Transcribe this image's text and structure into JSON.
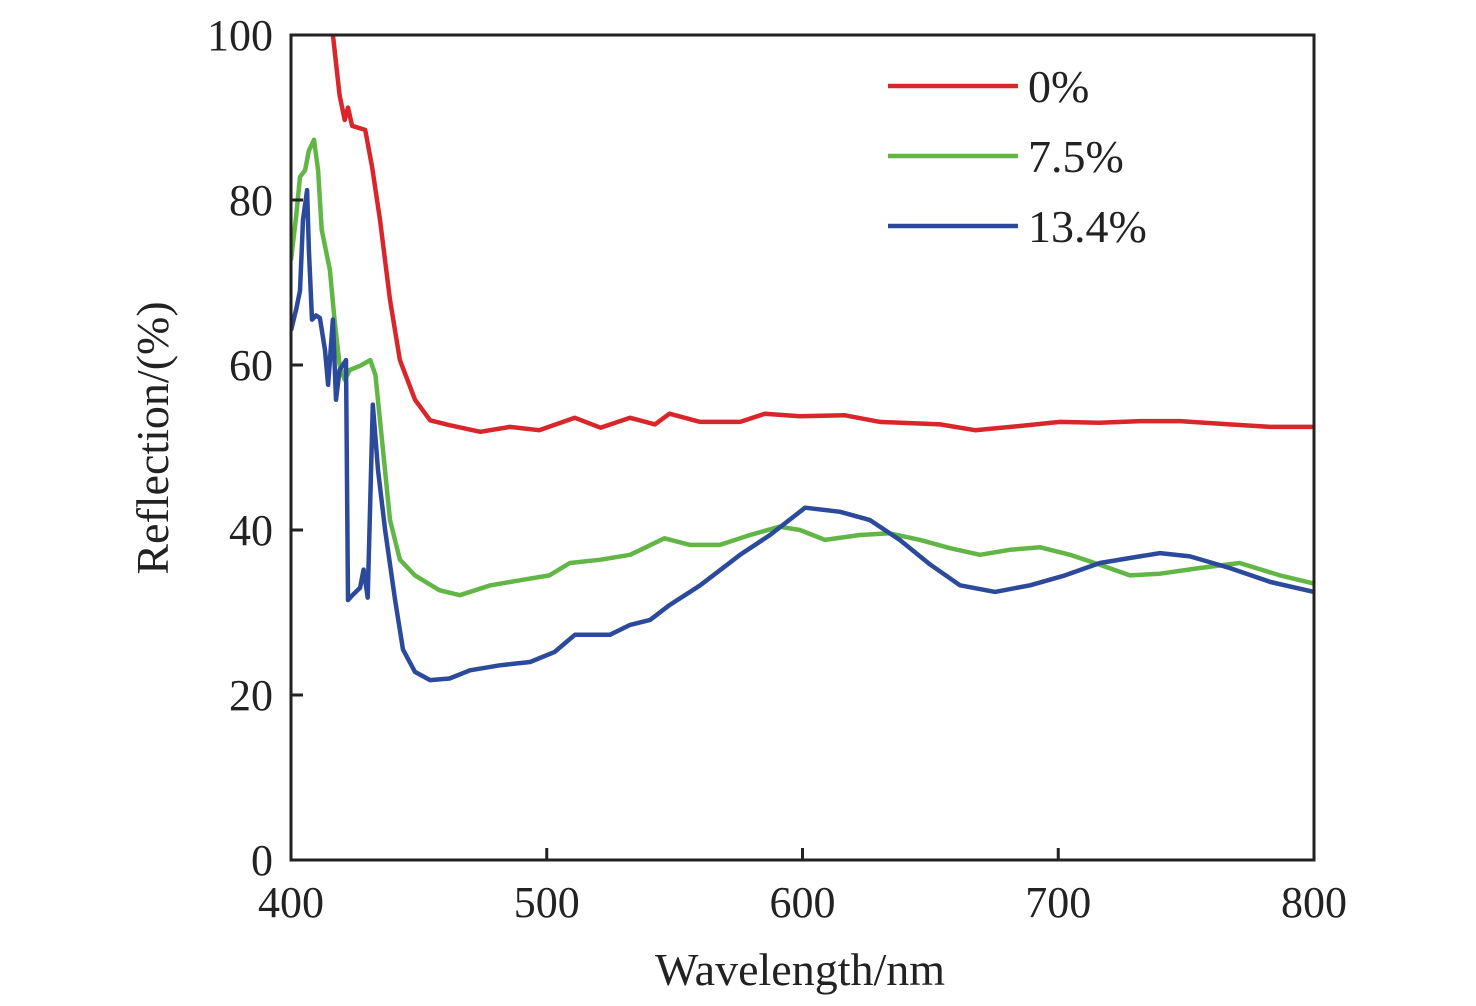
{
  "chart_data": {
    "type": "line",
    "title": "",
    "xlabel": "Wavelength/nm",
    "ylabel": "Reflection/(%)",
    "xlim": [
      400,
      800
    ],
    "ylim": [
      0,
      100
    ],
    "xticks": [
      400,
      500,
      600,
      700,
      800
    ],
    "yticks": [
      0,
      20,
      40,
      60,
      80,
      100
    ],
    "grid": false,
    "legend_position": "top-right",
    "series": [
      {
        "name": "0%",
        "color": "#d9262b",
        "points": [
          [
            416.4,
            100
          ],
          [
            419,
            92.7
          ],
          [
            421,
            89.7
          ],
          [
            422.3,
            91.2
          ],
          [
            423.9,
            89
          ],
          [
            429,
            88.5
          ],
          [
            431.7,
            84
          ],
          [
            434.8,
            77.6
          ],
          [
            438.7,
            67.9
          ],
          [
            442.6,
            60.6
          ],
          [
            448.5,
            55.8
          ],
          [
            454.4,
            53.3
          ],
          [
            462,
            52.7
          ],
          [
            474,
            51.9
          ],
          [
            485.6,
            52.5
          ],
          [
            497,
            52.1
          ],
          [
            511,
            53.6
          ],
          [
            521,
            52.4
          ],
          [
            532.6,
            53.6
          ],
          [
            542.3,
            52.8
          ],
          [
            548,
            54.1
          ],
          [
            560,
            53.1
          ],
          [
            575.6,
            53.1
          ],
          [
            585.3,
            54.1
          ],
          [
            599,
            53.8
          ],
          [
            616.6,
            53.9
          ],
          [
            630.3,
            53.1
          ],
          [
            653.8,
            52.8
          ],
          [
            667.5,
            52.1
          ],
          [
            685,
            52.6
          ],
          [
            700.7,
            53.1
          ],
          [
            716,
            53
          ],
          [
            732,
            53.2
          ],
          [
            747.6,
            53.2
          ],
          [
            767,
            52.8
          ],
          [
            783,
            52.5
          ],
          [
            800,
            52.5
          ]
        ]
      },
      {
        "name": "7.5%",
        "color": "#62b646",
        "points": [
          [
            400,
            72.7
          ],
          [
            402,
            78
          ],
          [
            403.5,
            82.8
          ],
          [
            405.5,
            83.6
          ],
          [
            407,
            86
          ],
          [
            409,
            87.3
          ],
          [
            410.6,
            83.6
          ],
          [
            412,
            76.4
          ],
          [
            415.2,
            71.5
          ],
          [
            417,
            65.5
          ],
          [
            419,
            60
          ],
          [
            421,
            58.2
          ],
          [
            423,
            59.4
          ],
          [
            427,
            59.9
          ],
          [
            431,
            60.6
          ],
          [
            433,
            58.8
          ],
          [
            435.6,
            50.9
          ],
          [
            438.7,
            41.2
          ],
          [
            442.6,
            36.4
          ],
          [
            448.5,
            34.5
          ],
          [
            458,
            32.7
          ],
          [
            466,
            32.1
          ],
          [
            478,
            33.3
          ],
          [
            489.5,
            33.9
          ],
          [
            501,
            34.5
          ],
          [
            509,
            36
          ],
          [
            521,
            36.4
          ],
          [
            532.6,
            37
          ],
          [
            546,
            39
          ],
          [
            556,
            38.2
          ],
          [
            567.7,
            38.2
          ],
          [
            579.5,
            39.4
          ],
          [
            591,
            40.4
          ],
          [
            599,
            40
          ],
          [
            608.8,
            38.8
          ],
          [
            622.5,
            39.4
          ],
          [
            634,
            39.6
          ],
          [
            646,
            38.8
          ],
          [
            657.7,
            37.8
          ],
          [
            669.4,
            37
          ],
          [
            681,
            37.6
          ],
          [
            693,
            37.9
          ],
          [
            704.6,
            37
          ],
          [
            716.3,
            35.8
          ],
          [
            728,
            34.5
          ],
          [
            739.8,
            34.7
          ],
          [
            755.4,
            35.4
          ],
          [
            770.9,
            36
          ],
          [
            786.7,
            34.5
          ],
          [
            800,
            33.5
          ]
        ]
      },
      {
        "name": "13.4%",
        "color": "#2c4a9c",
        "points": [
          [
            400,
            64.2
          ],
          [
            402,
            66.7
          ],
          [
            403.5,
            69
          ],
          [
            404.7,
            77.6
          ],
          [
            406.3,
            81.2
          ],
          [
            407,
            73.9
          ],
          [
            408.2,
            65.5
          ],
          [
            409.8,
            66
          ],
          [
            411.3,
            65.7
          ],
          [
            413.3,
            61.8
          ],
          [
            414.5,
            57.6
          ],
          [
            416.4,
            65.5
          ],
          [
            417.6,
            55.8
          ],
          [
            419,
            59.4
          ],
          [
            421.5,
            60.6
          ],
          [
            422.3,
            31.5
          ],
          [
            424,
            32.1
          ],
          [
            427,
            33
          ],
          [
            428.4,
            35.2
          ],
          [
            430,
            31.8
          ],
          [
            432,
            55.2
          ],
          [
            434,
            47.3
          ],
          [
            436.8,
            40
          ],
          [
            440.7,
            31.5
          ],
          [
            443.8,
            25.5
          ],
          [
            448.5,
            22.8
          ],
          [
            454.4,
            21.8
          ],
          [
            462,
            22
          ],
          [
            470,
            23
          ],
          [
            481.7,
            23.6
          ],
          [
            493.5,
            24
          ],
          [
            503,
            25.2
          ],
          [
            511,
            27.3
          ],
          [
            524.7,
            27.3
          ],
          [
            532.6,
            28.5
          ],
          [
            540.4,
            29.1
          ],
          [
            548,
            30.9
          ],
          [
            560,
            33.3
          ],
          [
            575.6,
            37
          ],
          [
            587.3,
            39.4
          ],
          [
            601,
            42.7
          ],
          [
            614.7,
            42.2
          ],
          [
            626.4,
            41.2
          ],
          [
            638,
            38.8
          ],
          [
            650,
            35.8
          ],
          [
            661.6,
            33.3
          ],
          [
            675.3,
            32.5
          ],
          [
            689,
            33.3
          ],
          [
            702.6,
            34.5
          ],
          [
            716.3,
            36
          ],
          [
            728,
            36.6
          ],
          [
            739.8,
            37.2
          ],
          [
            751.5,
            36.8
          ],
          [
            767,
            35.4
          ],
          [
            783,
            33.7
          ],
          [
            800,
            32.5
          ]
        ]
      }
    ]
  }
}
